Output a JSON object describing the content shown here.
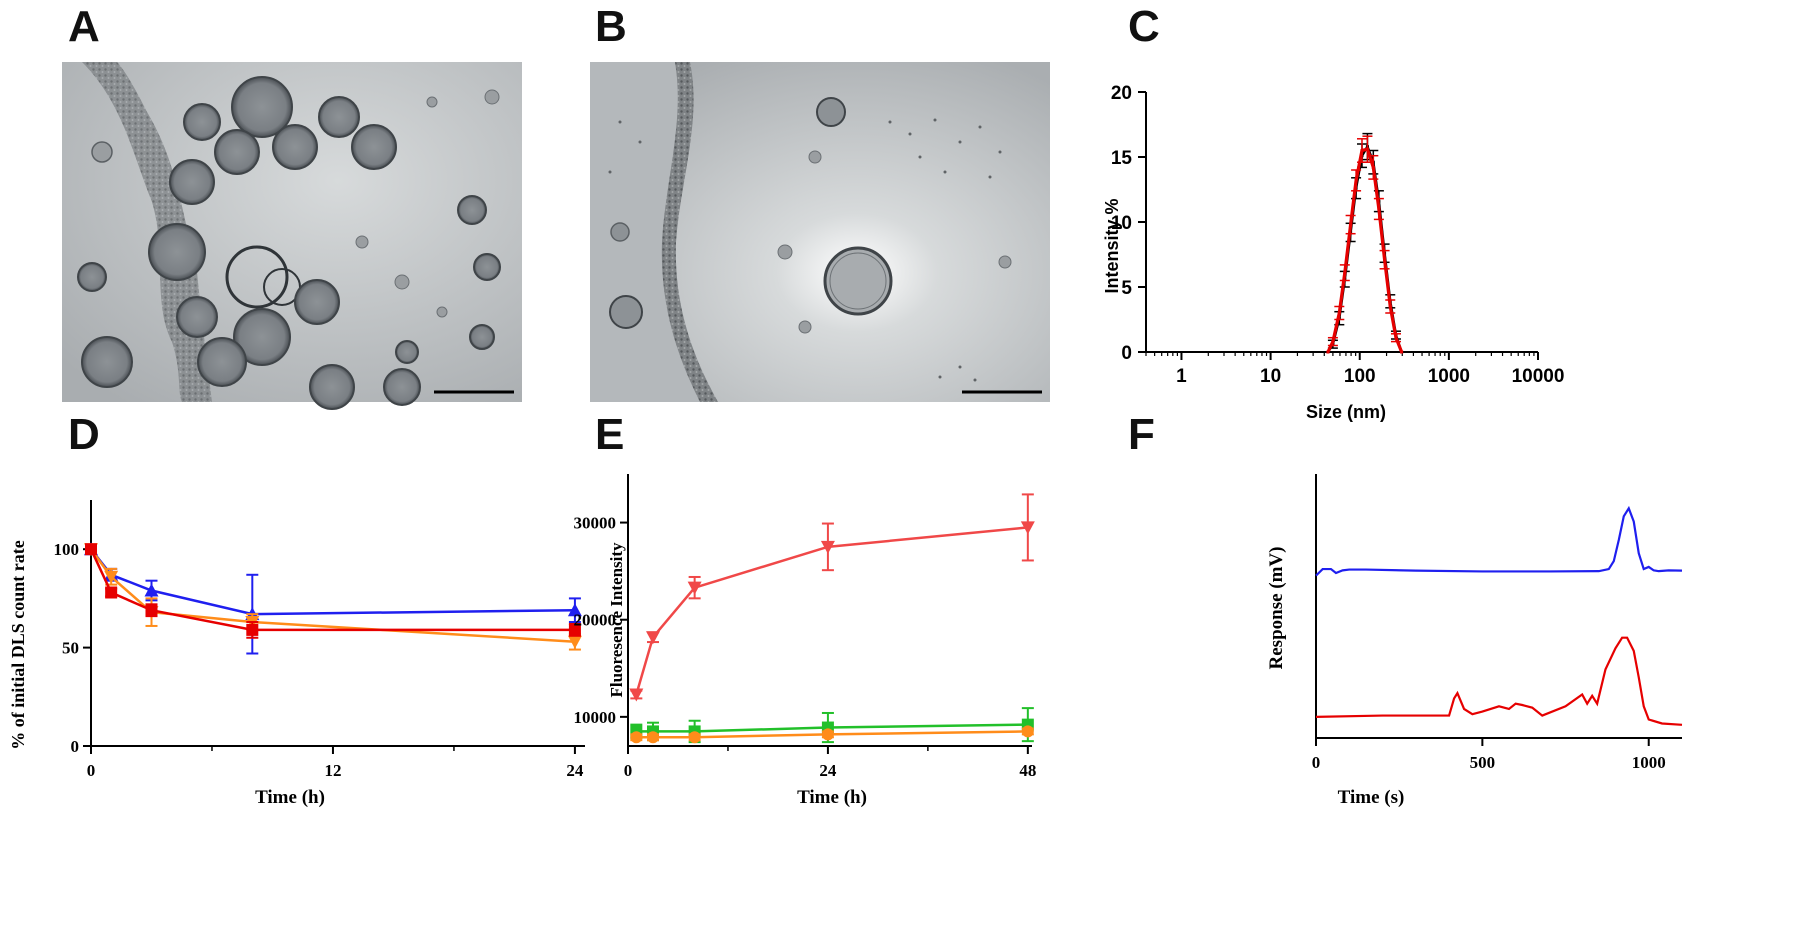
{
  "panels": {
    "A": {
      "letter": "A"
    },
    "B": {
      "letter": "B"
    },
    "C": {
      "letter": "C"
    },
    "D": {
      "letter": "D"
    },
    "E": {
      "letter": "E"
    },
    "F": {
      "letter": "F"
    }
  },
  "colors": {
    "blue": "#1f1fef",
    "red": "#e60000",
    "orange": "#ff8c1a",
    "green": "#22c02a",
    "redE": "#f04848",
    "black": "#000000"
  },
  "chart_data": [
    {
      "id": "C",
      "type": "line",
      "xlabel": "Size (nm)",
      "ylabel": "Intensity %",
      "xscale": "log",
      "xlim": [
        0.4,
        10000
      ],
      "ylim": [
        0,
        20
      ],
      "xticks": [
        "1",
        "10",
        "100",
        "1000",
        "10000"
      ],
      "yticks": [
        "0",
        "5",
        "10",
        "15",
        "20"
      ],
      "series": [
        {
          "color": "black",
          "x": [
            44,
            50,
            59,
            68,
            79,
            91,
            106,
            122,
            142,
            164,
            190,
            220,
            255,
            295
          ],
          "values": [
            0.0,
            0.6,
            2.6,
            5.6,
            9.2,
            12.6,
            15.1,
            15.8,
            14.6,
            11.6,
            7.6,
            3.9,
            1.3,
            0.0
          ],
          "errors": [
            0,
            0.3,
            0.5,
            0.6,
            0.7,
            0.8,
            0.9,
            1.0,
            0.9,
            0.8,
            0.7,
            0.5,
            0.3,
            0
          ]
        },
        {
          "color": "red",
          "x": [
            44,
            50,
            59,
            68,
            79,
            91,
            106,
            122,
            142,
            164,
            190,
            220,
            255,
            295
          ],
          "values": [
            0.0,
            0.8,
            3.0,
            6.1,
            9.8,
            13.2,
            15.5,
            15.6,
            14.2,
            11.0,
            7.1,
            3.5,
            1.1,
            0.0
          ],
          "errors": [
            0,
            0.3,
            0.5,
            0.6,
            0.7,
            0.8,
            0.9,
            1.0,
            0.9,
            0.8,
            0.7,
            0.5,
            0.3,
            0
          ]
        }
      ]
    },
    {
      "id": "D",
      "type": "line",
      "xlabel": "Time (h)",
      "ylabel": "% of initial DLS count rate",
      "xlim": [
        0,
        24.5
      ],
      "ylim": [
        0,
        125
      ],
      "xticks": [
        "0",
        "12",
        "24"
      ],
      "yticks": [
        "0",
        "50",
        "100"
      ],
      "series": [
        {
          "color": "blue",
          "marker": "triangle-up",
          "x": [
            0,
            1,
            3,
            8,
            24
          ],
          "values": [
            100,
            87,
            79,
            67,
            69
          ],
          "errors": [
            0,
            3,
            5,
            20,
            6
          ]
        },
        {
          "color": "orange",
          "marker": "triangle-down",
          "x": [
            0,
            1,
            3,
            8,
            24
          ],
          "values": [
            100,
            86,
            68,
            63,
            53
          ],
          "errors": [
            0,
            4,
            7,
            4,
            4
          ]
        },
        {
          "color": "red",
          "marker": "square",
          "x": [
            0,
            1,
            3,
            8,
            24
          ],
          "values": [
            100,
            78,
            69,
            59,
            59
          ],
          "errors": [
            0,
            2,
            3,
            4,
            3
          ]
        }
      ]
    },
    {
      "id": "E",
      "type": "line",
      "xlabel": "Time (h)",
      "ylabel": "Fluoresence Intensity",
      "xlim": [
        0,
        48.5
      ],
      "ylim": [
        7000,
        35000
      ],
      "xticks": [
        "0",
        "24",
        "48"
      ],
      "yticks": [
        "10000",
        "20000",
        "30000"
      ],
      "series": [
        {
          "color": "redE",
          "marker": "triangle-down",
          "x": [
            1,
            3,
            8,
            24,
            48
          ],
          "values": [
            12300,
            18200,
            23300,
            27500,
            29500
          ],
          "errors": [
            400,
            500,
            1100,
            2400,
            3400
          ]
        },
        {
          "color": "green",
          "marker": "square",
          "x": [
            1,
            3,
            8,
            24,
            48
          ],
          "values": [
            8500,
            8500,
            8500,
            8900,
            9200
          ],
          "errors": [
            700,
            900,
            1100,
            1500,
            1700
          ]
        },
        {
          "color": "orange",
          "marker": "circle",
          "x": [
            1,
            3,
            8,
            24,
            48
          ],
          "values": [
            7900,
            7900,
            7900,
            8200,
            8500
          ],
          "errors": [
            300,
            300,
            300,
            300,
            300
          ]
        }
      ]
    },
    {
      "id": "F",
      "type": "line",
      "xlabel": "Time (s)",
      "ylabel": "Response (mV)",
      "xlim": [
        0,
        1100
      ],
      "ylim": [
        0,
        100
      ],
      "xticks": [
        "0",
        "500",
        "1000"
      ],
      "yticks": [],
      "series": [
        {
          "color": "blue",
          "x": [
            0,
            20,
            45,
            60,
            80,
            100,
            150,
            300,
            500,
            700,
            850,
            880,
            895,
            910,
            925,
            940,
            955,
            970,
            985,
            1000,
            1015,
            1030,
            1060,
            1100
          ],
          "values": [
            61.5,
            64,
            64,
            62.5,
            63.5,
            63.8,
            63.8,
            63.4,
            63.1,
            63.1,
            63.2,
            64,
            67,
            75,
            84,
            87,
            82,
            70,
            64,
            64.8,
            63.5,
            63.2,
            63.5,
            63.4
          ]
        },
        {
          "color": "red",
          "x": [
            0,
            200,
            400,
            415,
            425,
            445,
            470,
            500,
            550,
            580,
            600,
            620,
            650,
            680,
            750,
            800,
            815,
            830,
            845,
            870,
            900,
            920,
            935,
            955,
            970,
            985,
            1000,
            1040,
            1100
          ],
          "values": [
            8,
            8.5,
            8.5,
            15,
            17,
            11,
            9,
            10,
            12,
            11,
            13,
            12.5,
            11.5,
            8.5,
            12,
            16.5,
            13,
            16,
            13,
            26,
            34,
            38,
            38,
            33,
            23,
            12,
            7,
            5.5,
            5
          ]
        }
      ]
    }
  ]
}
